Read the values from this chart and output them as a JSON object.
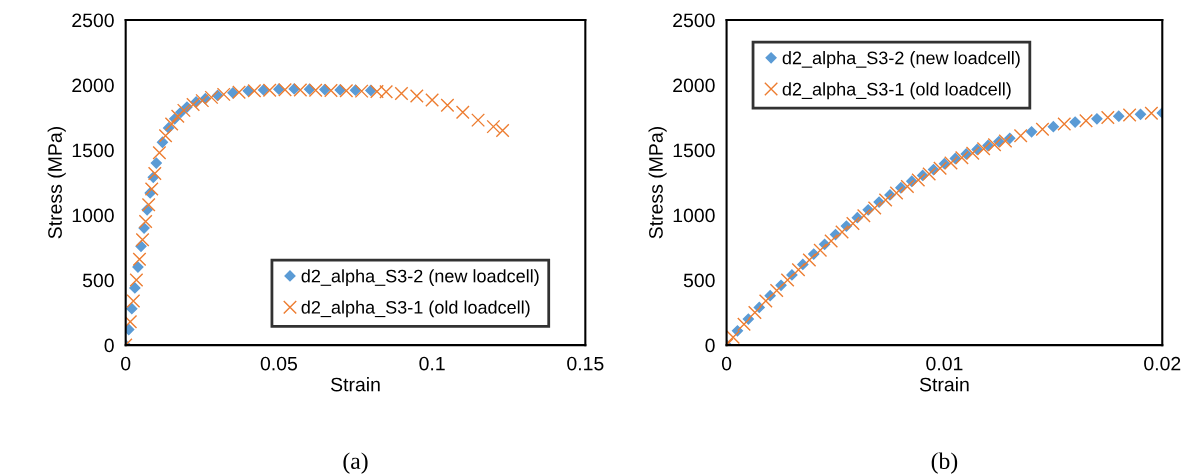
{
  "chart_data": [
    {
      "type": "scatter",
      "title": "(a)",
      "xlabel": "Strain",
      "ylabel": "Stress (MPa)",
      "xlim": [
        0,
        0.15
      ],
      "xticks": [
        0,
        0.05,
        0.1,
        0.15
      ],
      "ylim": [
        0,
        2500
      ],
      "yticks": [
        0,
        500,
        1000,
        1500,
        2000,
        2500
      ],
      "grid": false,
      "legend": "bottom right",
      "series": [
        {
          "name": "d2_alpha_S3-2 (new loadcell)",
          "color": "#5b9bd5",
          "marker": "diamond",
          "x": [
            0,
            0.001,
            0.002,
            0.003,
            0.004,
            0.005,
            0.006,
            0.007,
            0.008,
            0.009,
            0.01,
            0.012,
            0.014,
            0.016,
            0.018,
            0.02,
            0.023,
            0.026,
            0.03,
            0.035,
            0.04,
            0.045,
            0.05,
            0.055,
            0.06,
            0.065,
            0.07,
            0.075,
            0.08
          ],
          "values": [
            0,
            120,
            280,
            440,
            600,
            760,
            900,
            1040,
            1170,
            1290,
            1400,
            1560,
            1670,
            1740,
            1790,
            1830,
            1870,
            1895,
            1920,
            1940,
            1955,
            1962,
            1968,
            1970,
            1968,
            1965,
            1962,
            1960,
            1958
          ]
        },
        {
          "name": "d2_alpha_S3-1 (old loadcell)",
          "color": "#ed7d31",
          "marker": "cross",
          "x": [
            0,
            0.0015,
            0.0025,
            0.0035,
            0.0045,
            0.0055,
            0.0065,
            0.0075,
            0.0085,
            0.0095,
            0.011,
            0.013,
            0.015,
            0.017,
            0.019,
            0.022,
            0.025,
            0.028,
            0.032,
            0.037,
            0.042,
            0.047,
            0.052,
            0.057,
            0.062,
            0.067,
            0.072,
            0.077,
            0.082,
            0.085,
            0.09,
            0.095,
            0.1,
            0.105,
            0.11,
            0.115,
            0.12,
            0.123
          ],
          "values": [
            0,
            180,
            340,
            500,
            660,
            810,
            950,
            1080,
            1200,
            1320,
            1480,
            1610,
            1700,
            1760,
            1805,
            1850,
            1880,
            1905,
            1928,
            1945,
            1955,
            1960,
            1963,
            1962,
            1960,
            1958,
            1955,
            1953,
            1950,
            1948,
            1935,
            1915,
            1885,
            1845,
            1790,
            1730,
            1680,
            1650
          ]
        }
      ]
    },
    {
      "type": "scatter",
      "title": "(b)",
      "xlabel": "Strain",
      "ylabel": "Stress (MPa)",
      "xlim": [
        0,
        0.02
      ],
      "xticks": [
        0,
        0.01,
        0.02
      ],
      "ylim": [
        0,
        2500
      ],
      "yticks": [
        0,
        500,
        1000,
        1500,
        2000,
        2500
      ],
      "grid": false,
      "legend": "top left",
      "series": [
        {
          "name": "d2_alpha_S3-2 (new loadcell)",
          "color": "#5b9bd5",
          "marker": "diamond",
          "x": [
            0,
            0.0005,
            0.001,
            0.0015,
            0.002,
            0.0025,
            0.003,
            0.0035,
            0.004,
            0.0045,
            0.005,
            0.0055,
            0.006,
            0.0065,
            0.007,
            0.0075,
            0.008,
            0.0085,
            0.009,
            0.0095,
            0.01,
            0.0105,
            0.011,
            0.0115,
            0.012,
            0.0125,
            0.013,
            0.014,
            0.015,
            0.016,
            0.017,
            0.018,
            0.019,
            0.02
          ],
          "values": [
            0,
            110,
            200,
            290,
            380,
            460,
            540,
            620,
            700,
            775,
            850,
            915,
            980,
            1040,
            1100,
            1155,
            1210,
            1260,
            1305,
            1350,
            1395,
            1435,
            1470,
            1505,
            1535,
            1565,
            1590,
            1640,
            1680,
            1715,
            1740,
            1760,
            1775,
            1785
          ]
        },
        {
          "name": "d2_alpha_S3-1 (old loadcell)",
          "color": "#ed7d31",
          "marker": "cross",
          "x": [
            0,
            0.0003,
            0.0008,
            0.0013,
            0.0018,
            0.0023,
            0.0028,
            0.0033,
            0.0038,
            0.0043,
            0.0048,
            0.0053,
            0.0058,
            0.0063,
            0.0068,
            0.0073,
            0.0078,
            0.0083,
            0.0088,
            0.0093,
            0.0098,
            0.0103,
            0.0108,
            0.0113,
            0.0118,
            0.0123,
            0.0128,
            0.0135,
            0.0145,
            0.0155,
            0.0165,
            0.0175,
            0.0185,
            0.0195
          ],
          "values": [
            0,
            60,
            160,
            250,
            340,
            420,
            500,
            580,
            655,
            730,
            800,
            870,
            935,
            995,
            1055,
            1115,
            1170,
            1220,
            1270,
            1315,
            1360,
            1400,
            1440,
            1475,
            1510,
            1540,
            1570,
            1610,
            1660,
            1700,
            1725,
            1750,
            1770,
            1782
          ]
        }
      ]
    }
  ]
}
